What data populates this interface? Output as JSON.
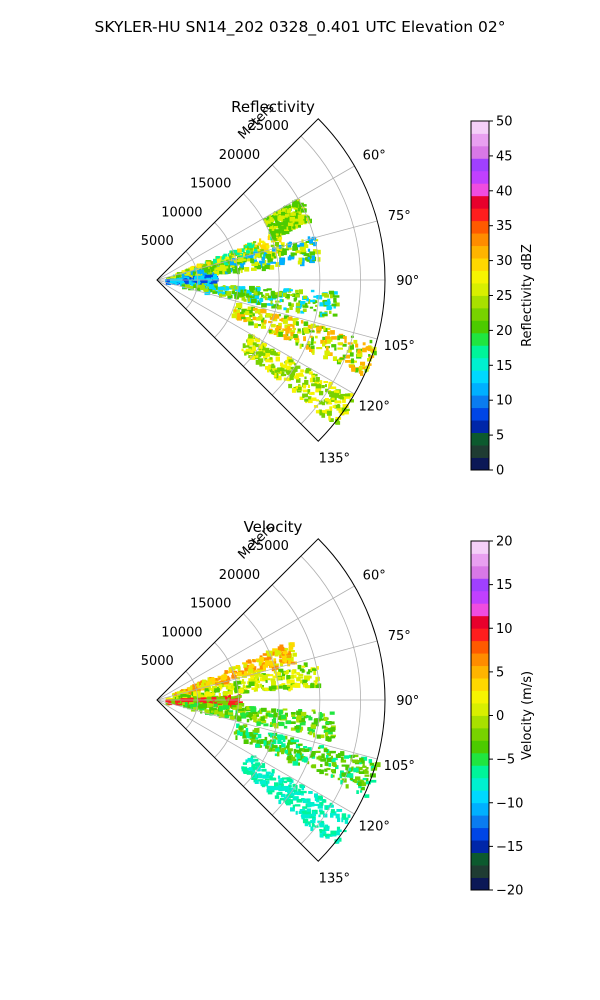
{
  "suptitle": "SKYLER-HU  SN14_202  0328_0.401 UTC Elevation 02°",
  "chart_data": [
    {
      "type": "heatmap",
      "subtype": "polar-sector-ppi",
      "title": "Reflectivity",
      "radial_label": "Meters",
      "theta_range_deg": [
        45,
        135
      ],
      "r_max": 28000,
      "range_ticks": [
        5000,
        10000,
        15000,
        20000,
        25000
      ],
      "range_tick_labels": [
        "5000",
        "10000",
        "15000",
        "20000",
        "25000"
      ],
      "azimuth_ticks": [
        60,
        75,
        90,
        105,
        120,
        135
      ],
      "azimuth_tick_labels": [
        "60°",
        "75°",
        "90°",
        "105°",
        "120°",
        "135°"
      ],
      "grid": true,
      "colorbar": {
        "label": "Reflectivity dBZ",
        "min": 0,
        "max": 50,
        "ticks": [
          0,
          5,
          10,
          15,
          20,
          25,
          30,
          35,
          40,
          45,
          50
        ],
        "tick_labels": [
          "0",
          "5",
          "10",
          "15",
          "20",
          "25",
          "30",
          "35",
          "40",
          "45",
          "50"
        ],
        "colors": [
          "#0b1856",
          "#1f3c32",
          "#0c5a2e",
          "#0026a8",
          "#0046e6",
          "#0a7cf0",
          "#00b0ff",
          "#00d8ff",
          "#00f0d0",
          "#00f59a",
          "#20e640",
          "#4ccb00",
          "#78d200",
          "#a8e000",
          "#d8ef00",
          "#f6f400",
          "#ffd800",
          "#ffb400",
          "#ff8c00",
          "#ff5a00",
          "#ff1e1e",
          "#e8002c",
          "#f04ce0",
          "#c040ff",
          "#a040ff",
          "#d878e6",
          "#e8a0f0",
          "#f4d0f8"
        ]
      },
      "echo_regions": [
        {
          "az": 72,
          "r_from": 2000,
          "r_to": 16000,
          "values": [
            17,
            22,
            27,
            30
          ]
        },
        {
          "az": 78,
          "r_from": 1000,
          "r_to": 20000,
          "values": [
            12,
            20,
            25
          ]
        },
        {
          "az": 64,
          "r_from": 15000,
          "r_to": 20000,
          "values": [
            20,
            25
          ]
        },
        {
          "az": 88,
          "r_from": 1000,
          "r_to": 7000,
          "values": [
            8,
            13
          ]
        },
        {
          "az": 98,
          "r_from": 3000,
          "r_to": 22000,
          "values": [
            14,
            20,
            24
          ]
        },
        {
          "az": 110,
          "r_from": 10000,
          "r_to": 28000,
          "values": [
            20,
            25,
            32
          ]
        },
        {
          "az": 125,
          "r_from": 13000,
          "r_to": 28000,
          "values": [
            22,
            27
          ]
        }
      ]
    },
    {
      "type": "heatmap",
      "subtype": "polar-sector-ppi",
      "title": "Velocity",
      "radial_label": "Meters",
      "theta_range_deg": [
        45,
        135
      ],
      "r_max": 28000,
      "range_ticks": [
        5000,
        10000,
        15000,
        20000,
        25000
      ],
      "range_tick_labels": [
        "5000",
        "10000",
        "15000",
        "20000",
        "25000"
      ],
      "azimuth_ticks": [
        60,
        75,
        90,
        105,
        120,
        135
      ],
      "azimuth_tick_labels": [
        "60°",
        "75°",
        "90°",
        "105°",
        "120°",
        "135°"
      ],
      "grid": true,
      "colorbar": {
        "label": "Velocity (m/s)",
        "min": -20,
        "max": 20,
        "ticks": [
          -20,
          -15,
          -10,
          -5,
          0,
          5,
          10,
          15,
          20
        ],
        "tick_labels": [
          "−20",
          "−15",
          "−10",
          "−5",
          "0",
          "5",
          "10",
          "15",
          "20"
        ],
        "colors": [
          "#0b1856",
          "#1f3c32",
          "#0c5a2e",
          "#0026a8",
          "#0046e6",
          "#0a7cf0",
          "#00b0ff",
          "#00d8ff",
          "#00f0d0",
          "#00f59a",
          "#20e640",
          "#4ccb00",
          "#78d200",
          "#a8e000",
          "#d8ef00",
          "#f6f400",
          "#ffd800",
          "#ffb400",
          "#ff8c00",
          "#ff5a00",
          "#ff1e1e",
          "#e8002c",
          "#f04ce0",
          "#c040ff",
          "#a040ff",
          "#d878e6",
          "#e8a0f0",
          "#f4d0f8"
        ]
      },
      "echo_regions": [
        {
          "az": 70,
          "r_from": 2000,
          "r_to": 18000,
          "values": [
            1,
            3,
            6
          ]
        },
        {
          "az": 80,
          "r_from": 1000,
          "r_to": 20000,
          "values": [
            -3,
            0,
            2
          ]
        },
        {
          "az": 90,
          "r_from": 1000,
          "r_to": 10000,
          "values": [
            -2,
            9
          ]
        },
        {
          "az": 98,
          "r_from": 3000,
          "r_to": 22000,
          "values": [
            -5,
            -3,
            -1
          ]
        },
        {
          "az": 110,
          "r_from": 10000,
          "r_to": 28000,
          "values": [
            -6,
            -3,
            -2
          ]
        },
        {
          "az": 125,
          "r_from": 13000,
          "r_to": 28000,
          "values": [
            -8,
            -6
          ]
        }
      ]
    }
  ]
}
